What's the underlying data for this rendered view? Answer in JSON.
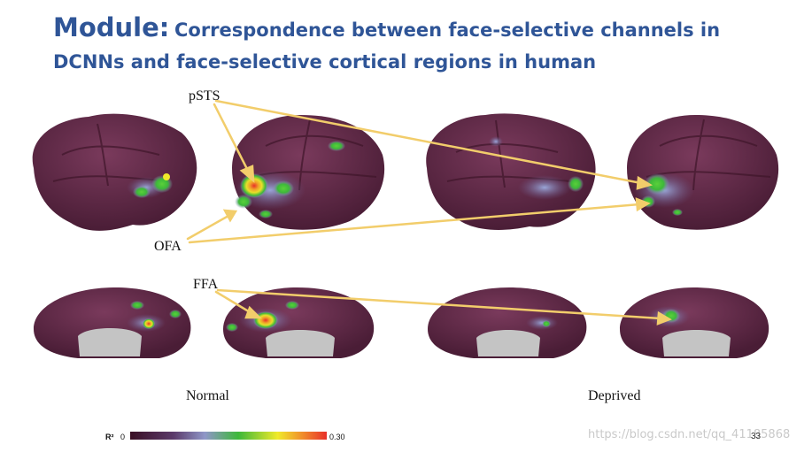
{
  "slide": {
    "title_lead": "Module:",
    "title_rest": "Correspondence between face-selective channels in DCNNs and face-selective cortical regions in human",
    "page_number": "33",
    "watermark": "https://blog.csdn.net/qq_41185868"
  },
  "figure": {
    "region_labels": {
      "psts": "pSTS",
      "ofa": "OFA",
      "ffa": "FFA"
    },
    "condition_labels": {
      "normal": "Normal",
      "deprived": "Deprived"
    },
    "colorbar": {
      "label": "R²",
      "min": "0",
      "max": "0.30"
    },
    "colors": {
      "cortex": "#5e2a45",
      "medial_wall": "#c4c4c4",
      "arrow": "#f2cd6b",
      "colormap": [
        "#3a0f24",
        "#5b3a6a",
        "#8f96c8",
        "#3db83a",
        "#f0ea2a",
        "#f08a2a",
        "#e8302a"
      ]
    }
  }
}
